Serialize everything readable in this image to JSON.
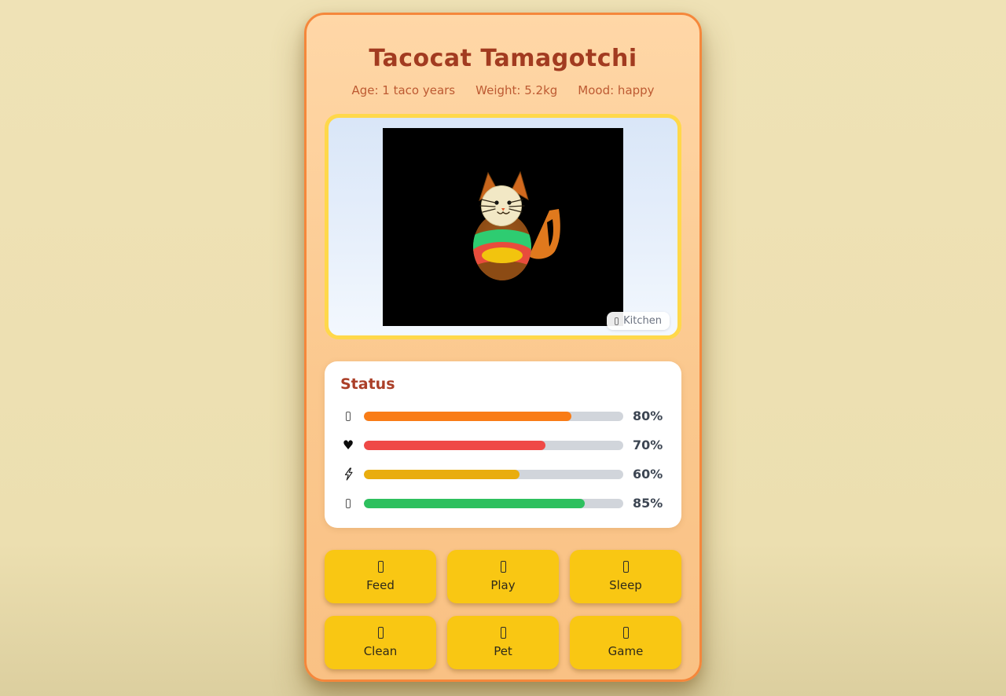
{
  "header": {
    "title": "Tacocat Tamagotchi",
    "age": "Age: 1 taco years",
    "weight": "Weight: 5.2kg",
    "mood": "Mood: happy"
  },
  "screen": {
    "location_label": "Kitchen",
    "location_icon": "missing-glyph-box",
    "pet": "tacocat-sprite",
    "canvas_bg": "#000000"
  },
  "status": {
    "heading": "Status",
    "track_color": "#d1d5db",
    "bars": [
      {
        "icon": "missing-glyph-box",
        "label": "80%",
        "value": 80,
        "color": "#f97c16"
      },
      {
        "icon": "heart",
        "label": "70%",
        "value": 70,
        "color": "#ef4946"
      },
      {
        "icon": "lightning-bolt",
        "label": "60%",
        "value": 60,
        "color": "#e9ad0e"
      },
      {
        "icon": "missing-glyph-box",
        "label": "85%",
        "value": 85,
        "color": "#2dc05e"
      }
    ]
  },
  "actions": [
    {
      "icon": "missing-glyph-box",
      "label": "Feed"
    },
    {
      "icon": "missing-glyph-box",
      "label": "Play"
    },
    {
      "icon": "missing-glyph-box",
      "label": "Sleep"
    },
    {
      "icon": "missing-glyph-box",
      "label": "Clean"
    },
    {
      "icon": "missing-glyph-box",
      "label": "Pet"
    },
    {
      "icon": "missing-glyph-box",
      "label": "Game"
    }
  ],
  "theme": {
    "page_bg": "#ecdfb0",
    "card_border": "#f5873b",
    "card_bg_top": "#ffd7a7",
    "card_bg_bottom": "#f9c184",
    "screen_border": "#ffd84a",
    "button_bg": "#f9c713",
    "title_color": "#a23b20",
    "status_heading_color": "#ab3f28"
  }
}
